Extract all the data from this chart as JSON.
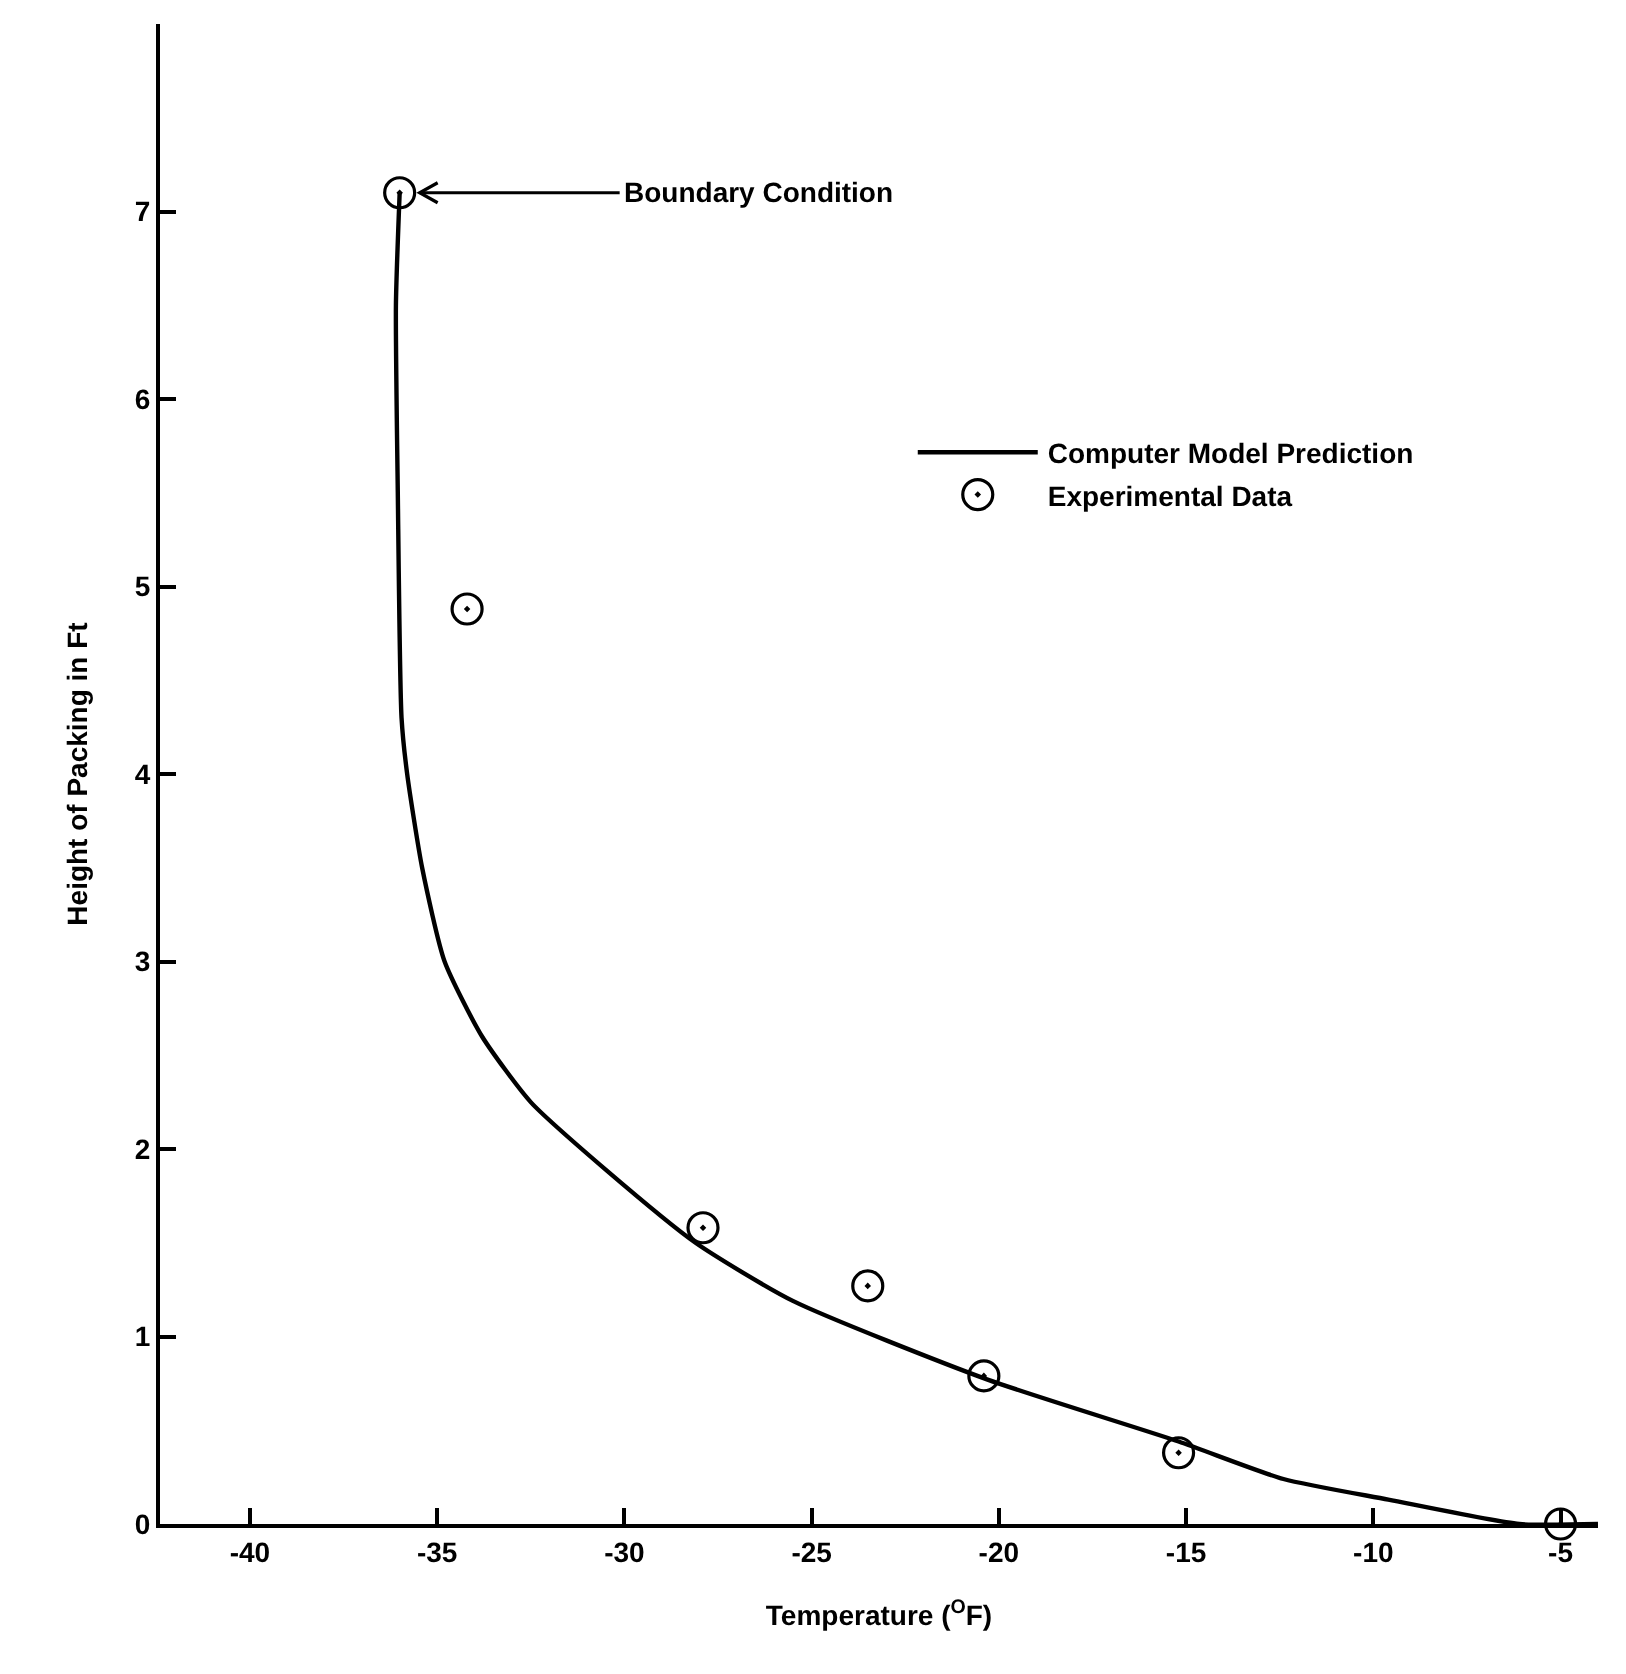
{
  "chart_data": {
    "type": "line",
    "xlabel": "Temperature ($^{O}$F)",
    "ylabel": "Height of Packing in Ft",
    "xlim": [
      -42.4,
      -4
    ],
    "xticks": [
      -40,
      -35,
      -30,
      -25,
      -20,
      -15,
      -10,
      -5
    ],
    "ylim": [
      0,
      8
    ],
    "yticks": [
      0,
      1,
      2,
      3,
      4,
      5,
      6,
      7
    ],
    "grid": false,
    "legend": "right",
    "annotations": [
      {
        "text": "Boundary Condition",
        "x": -36,
        "y": 7.1
      }
    ],
    "series": [
      {
        "name": "Computer Model Prediction",
        "color": "#000000",
        "marker": "none",
        "line_style": "solid",
        "x": [
          -36,
          -36.1,
          -36.05,
          -35.95,
          -35.8,
          -35.4,
          -34.8,
          -33.8,
          -32.5,
          -30.5,
          -28.1,
          -25.5,
          -20.3,
          -15.2,
          -12.4,
          -9.6,
          -6.1,
          -4
        ],
        "values": [
          7.1,
          6.5,
          5.5,
          4.3,
          4.0,
          3.5,
          3.0,
          2.6,
          2.25,
          1.89,
          1.5,
          1.19,
          0.77,
          0.44,
          0.24,
          0.13,
          0,
          0
        ]
      },
      {
        "name": "Experimental Data",
        "type": "scatter",
        "color": "#000000",
        "marker": "circle",
        "x": [
          -36,
          -34.2,
          -27.9,
          -23.5,
          -20.4,
          -15.2,
          -5
        ],
        "values": [
          7.1,
          4.88,
          1.58,
          1.27,
          0.79,
          0.38,
          0
        ]
      }
    ]
  }
}
